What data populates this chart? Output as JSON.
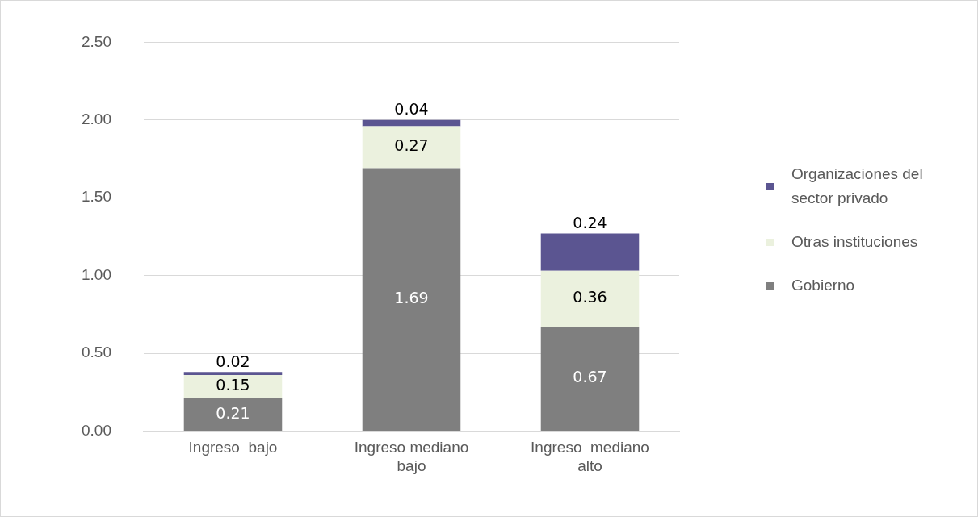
{
  "chart_data": {
    "type": "bar",
    "stacked": true,
    "categories": [
      "Ingreso  bajo",
      "Ingreso mediano bajo",
      "Ingreso  mediano alto"
    ],
    "series": [
      {
        "name": "Gobierno",
        "color": "#7f7f7f",
        "values": [
          0.21,
          1.69,
          0.67
        ]
      },
      {
        "name": "Otras instituciones",
        "color": "#ebf1de",
        "values": [
          0.15,
          0.27,
          0.36
        ]
      },
      {
        "name": "Organizaciones del sector privado",
        "color": "#5b5591",
        "values": [
          0.02,
          0.04,
          0.24
        ]
      }
    ],
    "ylim": [
      0,
      2.5
    ],
    "yticks": [
      {
        "value": 0,
        "label": "0.00"
      },
      {
        "value": 0.5,
        "label": "0.50"
      },
      {
        "value": 1,
        "label": "1.00"
      },
      {
        "value": 1.5,
        "label": "1.50"
      },
      {
        "value": 2,
        "label": "2.00"
      },
      {
        "value": 2.5,
        "label": "2.50"
      }
    ],
    "grid": "y",
    "legend": "right",
    "data_labels": true
  }
}
